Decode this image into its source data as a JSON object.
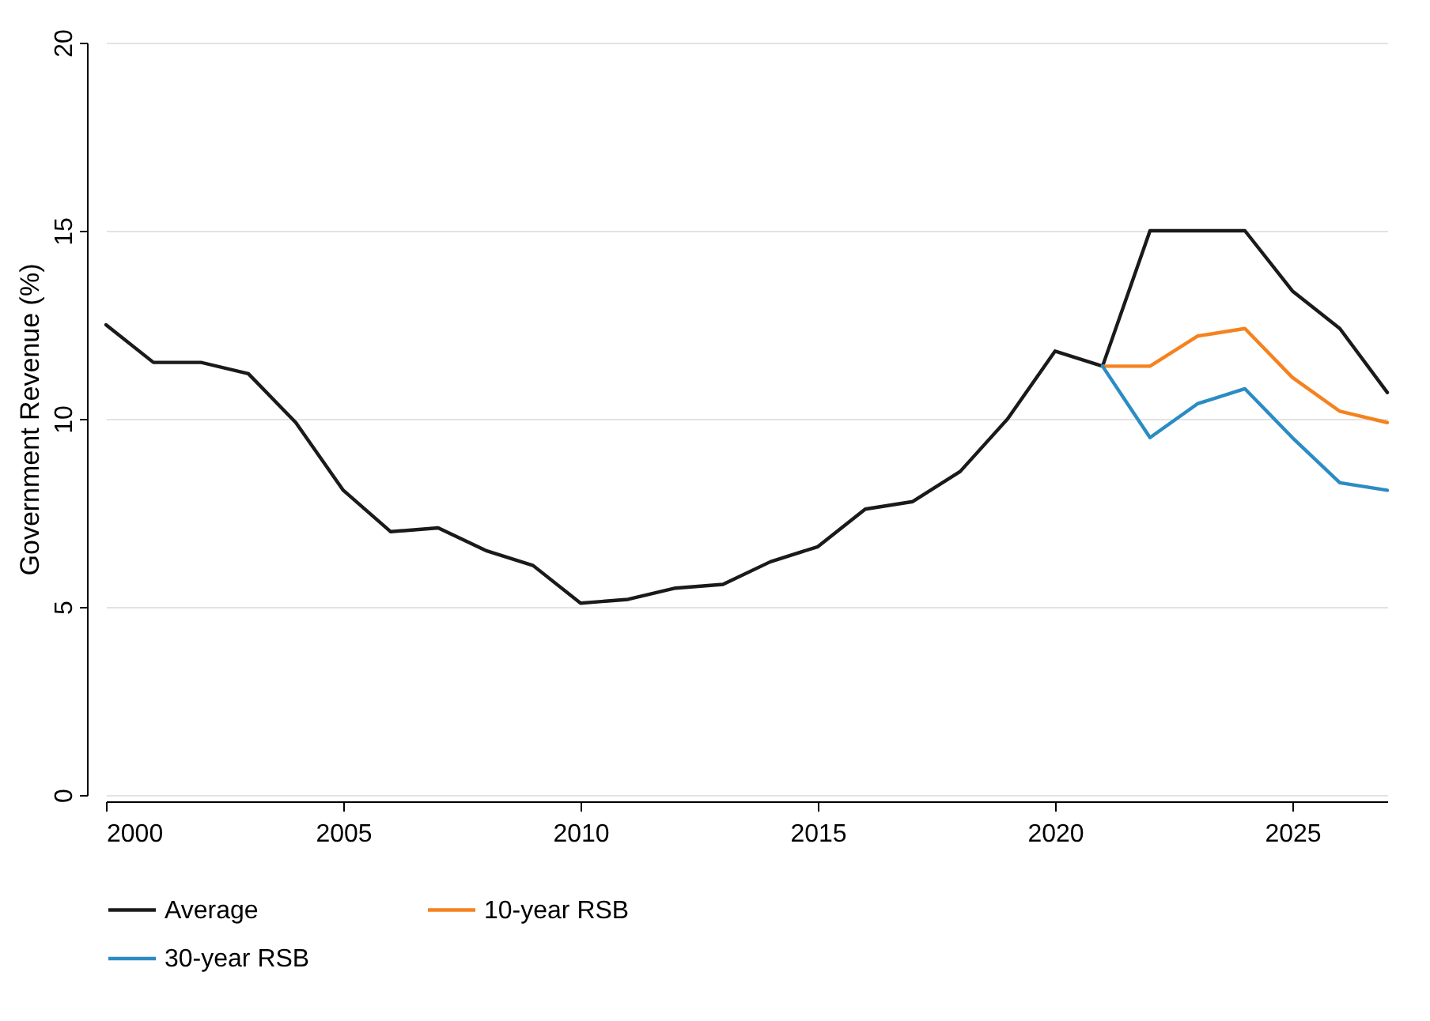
{
  "chart_data": {
    "type": "line",
    "ylabel": "Government Revenue (%)",
    "xlim": [
      2000,
      2027
    ],
    "xticks": [
      2000,
      2005,
      2010,
      2015,
      2020,
      2025
    ],
    "ylim": [
      0,
      20
    ],
    "yticks": [
      0,
      5,
      10,
      15,
      20
    ],
    "grid": "y",
    "legend": "bottom",
    "series": [
      {
        "name": "Average",
        "color": "#1a1a1a",
        "x": [
          2000,
          2001,
          2002,
          2003,
          2004,
          2005,
          2006,
          2007,
          2008,
          2009,
          2010,
          2011,
          2012,
          2013,
          2014,
          2015,
          2016,
          2017,
          2018,
          2019,
          2020,
          2021,
          2022,
          2023,
          2024,
          2025,
          2026,
          2027
        ],
        "values": [
          12.5,
          11.5,
          11.5,
          11.2,
          9.9,
          8.1,
          7.0,
          7.1,
          6.5,
          6.1,
          5.1,
          5.2,
          5.5,
          5.6,
          6.2,
          6.6,
          7.6,
          7.8,
          8.6,
          10.0,
          11.8,
          11.4,
          15.0,
          15.0,
          15.0,
          13.4,
          12.4,
          10.7
        ]
      },
      {
        "name": "10-year RSB",
        "color": "#f5821f",
        "x": [
          2021,
          2022,
          2023,
          2024,
          2025,
          2026,
          2027
        ],
        "values": [
          11.4,
          11.4,
          12.2,
          12.4,
          11.1,
          10.2,
          9.9
        ]
      },
      {
        "name": "30-year RSB",
        "color": "#2b8cc4",
        "x": [
          2021,
          2022,
          2023,
          2024,
          2025,
          2026,
          2027
        ],
        "values": [
          11.4,
          9.5,
          10.4,
          10.8,
          9.5,
          8.3,
          8.1
        ]
      }
    ]
  }
}
